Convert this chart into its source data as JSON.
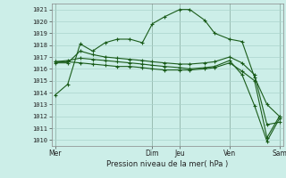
{
  "xlabel": "Pression niveau de la mer( hPa )",
  "bg_color": "#cceee8",
  "grid_color": "#aad4cc",
  "line_color": "#1a5c1a",
  "ylim": [
    1009.5,
    1021.5
  ],
  "xlim": [
    -0.15,
    9.15
  ],
  "yticks": [
    1010,
    1011,
    1012,
    1013,
    1014,
    1015,
    1016,
    1017,
    1018,
    1019,
    1020,
    1021
  ],
  "day_labels": [
    "Mer",
    "Dim",
    "Jeu",
    "Ven",
    "Sam"
  ],
  "day_positions": [
    0.0,
    3.9,
    5.0,
    7.0,
    9.0
  ],
  "series": [
    {
      "x": [
        0.0,
        0.5,
        1.0,
        1.5,
        2.0,
        2.5,
        3.0,
        3.5,
        3.9,
        4.4,
        5.0,
        5.4,
        6.0,
        6.4,
        7.0,
        7.5,
        8.0,
        8.5,
        9.0
      ],
      "y": [
        1013.8,
        1014.7,
        1018.1,
        1017.5,
        1018.2,
        1018.5,
        1018.5,
        1018.2,
        1019.8,
        1020.4,
        1021.0,
        1021.0,
        1020.1,
        1019.0,
        1018.5,
        1018.3,
        1015.3,
        1013.0,
        1012.0
      ]
    },
    {
      "x": [
        0.0,
        0.5,
        1.0,
        1.5,
        2.0,
        2.5,
        3.0,
        3.5,
        3.9,
        4.4,
        5.0,
        5.4,
        6.0,
        6.4,
        7.0,
        7.5,
        8.0,
        8.5,
        9.0
      ],
      "y": [
        1016.5,
        1016.5,
        1017.5,
        1017.2,
        1017.0,
        1016.9,
        1016.8,
        1016.7,
        1016.6,
        1016.5,
        1016.4,
        1016.4,
        1016.5,
        1016.6,
        1017.0,
        1016.5,
        1015.5,
        1011.3,
        1011.5
      ]
    },
    {
      "x": [
        0.0,
        0.5,
        1.0,
        1.5,
        2.0,
        2.5,
        3.0,
        3.5,
        3.9,
        4.4,
        5.0,
        5.4,
        6.0,
        6.4,
        7.0,
        7.5,
        8.0,
        8.5,
        9.0
      ],
      "y": [
        1016.6,
        1016.6,
        1016.5,
        1016.4,
        1016.3,
        1016.2,
        1016.2,
        1016.1,
        1016.0,
        1015.9,
        1015.9,
        1015.9,
        1016.0,
        1016.1,
        1016.5,
        1015.8,
        1015.0,
        1010.2,
        1012.0
      ]
    },
    {
      "x": [
        0.0,
        0.5,
        1.0,
        1.5,
        2.0,
        2.5,
        3.0,
        3.5,
        3.9,
        4.4,
        5.0,
        5.4,
        6.0,
        6.4,
        7.0,
        7.5,
        8.0,
        8.5,
        9.0
      ],
      "y": [
        1016.6,
        1016.7,
        1016.9,
        1016.8,
        1016.7,
        1016.6,
        1016.5,
        1016.4,
        1016.3,
        1016.2,
        1016.1,
        1016.0,
        1016.1,
        1016.2,
        1016.7,
        1015.5,
        1012.9,
        1009.9,
        1011.8
      ]
    }
  ]
}
